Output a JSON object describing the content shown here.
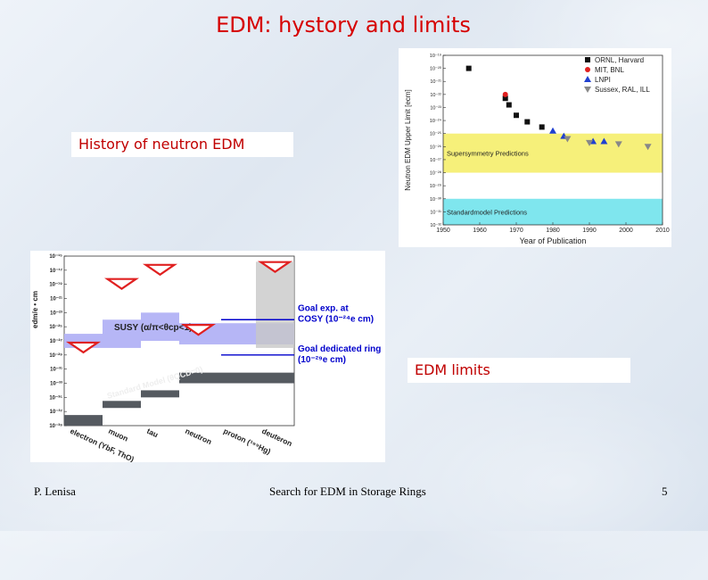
{
  "slide": {
    "title": "EDM: hystory and limits",
    "label_history": "History of neutron EDM",
    "label_limits": "EDM limits",
    "footer_author": "P. Lenisa",
    "footer_center": "Search for EDM in Storage Rings",
    "page_number": "5",
    "title_color": "#d60000"
  },
  "chart_data": [
    {
      "type": "scatter",
      "xlabel": "Year of Publication",
      "ylabel": "Neutron EDM Upper Limit [ecm]",
      "y_scale": "log",
      "xlim": [
        1950,
        2010
      ],
      "ylim_exponent": [
        -32,
        -19
      ],
      "x_ticks": [
        "1950",
        "1960",
        "1970",
        "1980",
        "1990",
        "2000",
        "2010"
      ],
      "y_ticks": [
        "10⁻¹⁹",
        "10⁻²⁰",
        "10⁻²¹",
        "10⁻²²",
        "10⁻²³",
        "10⁻²⁴",
        "10⁻²⁵",
        "10⁻²⁶",
        "10⁻²⁷",
        "10⁻²⁸",
        "10⁻²⁹",
        "10⁻³⁰",
        "10⁻³¹",
        "10⁻³²"
      ],
      "legend_position": "top-right",
      "bands": [
        {
          "label": "Supersymmetry Predictions",
          "from_exp": -25,
          "to_exp": -28,
          "color": "#f6f07a"
        },
        {
          "label": "Standardmodel Predictions",
          "from_exp": -30,
          "to_exp": -32,
          "color": "#7fe6ee"
        }
      ],
      "series": [
        {
          "name": "ORNL, Harvard",
          "marker": "square",
          "color": "#111111",
          "points": [
            [
              1957,
              -20.0
            ],
            [
              1967,
              -22.3
            ],
            [
              1968,
              -22.8
            ],
            [
              1970,
              -23.6
            ],
            [
              1973,
              -24.1
            ],
            [
              1977,
              -24.5
            ]
          ]
        },
        {
          "name": "MIT, BNL",
          "marker": "circle",
          "color": "#e02020",
          "points": [
            [
              1967,
              -22.0
            ]
          ]
        },
        {
          "name": "LNPI",
          "marker": "triangle-up",
          "color": "#2040d0",
          "points": [
            [
              1980,
              -24.8
            ],
            [
              1983,
              -25.2
            ],
            [
              1991,
              -25.6
            ],
            [
              1994,
              -25.6
            ]
          ]
        },
        {
          "name": "Sussex, RAL, ILL",
          "marker": "triangle-down",
          "color": "#888888",
          "points": [
            [
              1984,
              -25.4
            ],
            [
              1990,
              -25.7
            ],
            [
              1998,
              -25.8
            ],
            [
              2006,
              -26.0
            ]
          ]
        }
      ]
    },
    {
      "type": "bar",
      "ylabel": "edm/e • cm",
      "y_scale": "log",
      "ylim_exponent": [
        -39,
        -15
      ],
      "y_ticks": [
        "10⁻¹⁵",
        "10⁻¹⁷",
        "10⁻¹⁹",
        "10⁻²¹",
        "10⁻²³",
        "10⁻²⁵",
        "10⁻²⁷",
        "10⁻²⁹",
        "10⁻³¹",
        "10⁻³³",
        "10⁻³⁵",
        "10⁻³⁷",
        "10⁻³⁹"
      ],
      "categories": [
        "electron (YbF, ThO)",
        "muon",
        "tau",
        "neutron",
        "proton (¹⁹⁹Hg)",
        "deuteron"
      ],
      "experimental_limits_exp": [
        -28.0,
        -19.0,
        -17.0,
        -25.5,
        null,
        -16.6
      ],
      "susy_band_label": "SUSY (α/π<θcp<1)",
      "susy_band_exp": [
        [
          -26.0,
          -28.0
        ],
        [
          -24.0,
          -28.0
        ],
        [
          -23.0,
          -27.0
        ],
        [
          -24.5,
          -27.5
        ],
        [
          -24.5,
          -27.5
        ],
        [
          -24.5,
          -27.5
        ]
      ],
      "sm_band_label": "Standard Model (θQCD=0)",
      "sm_band_exp": [
        [
          -37.5,
          -39.0
        ],
        [
          -35.5,
          -36.5
        ],
        [
          -34.0,
          -35.0
        ],
        [
          -31.5,
          -33.0
        ],
        [
          -31.5,
          -33.0
        ],
        [
          -31.5,
          -33.0
        ]
      ],
      "annotations": [
        {
          "text": "Goal exp. at COSY (10⁻²⁴e cm)",
          "value_exp": -24.0,
          "color": "#0000cc"
        },
        {
          "text": "Goal dedicated ring (10⁻²⁹e cm)",
          "value_exp": -29.0,
          "color": "#0000cc"
        }
      ],
      "susy_color": "#b6b6f6",
      "sm_color": "#555a60",
      "limit_marker_color": "#e02020"
    }
  ]
}
